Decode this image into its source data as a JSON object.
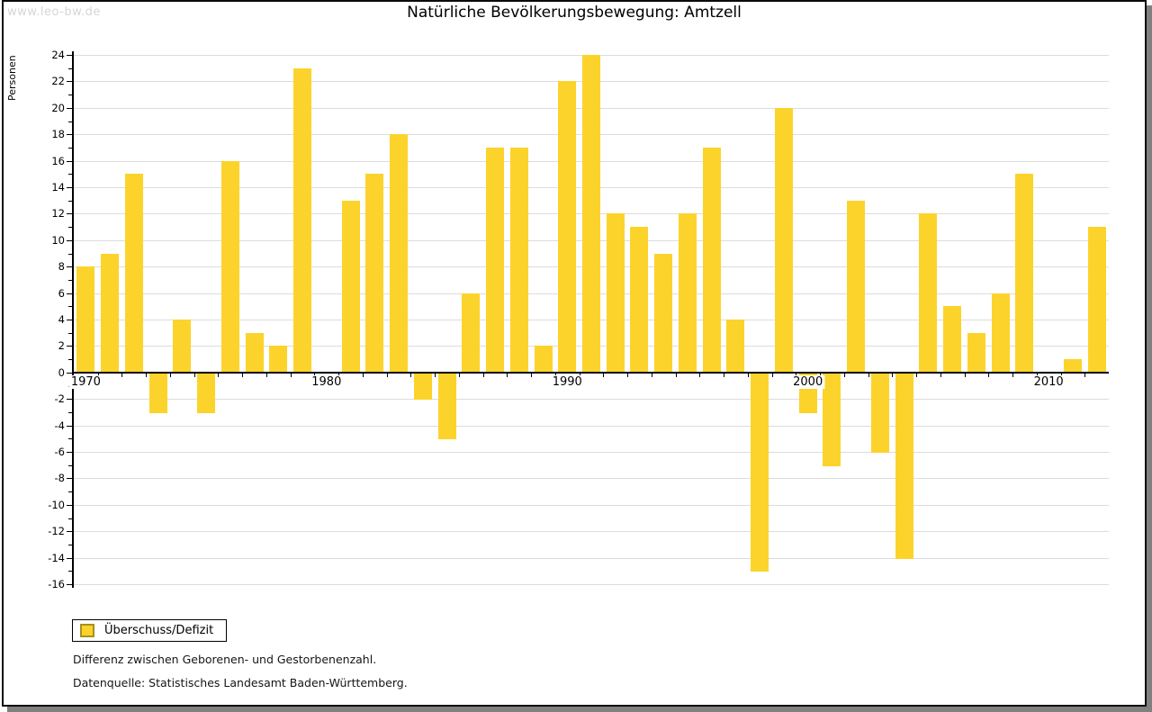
{
  "header": {
    "title": "Natürliche Bevölkerungsbewegung: Amtzell",
    "watermark": "www.leo-bw.de"
  },
  "chart_data": {
    "type": "bar",
    "title": "Natürliche Bevölkerungsbewegung: Amtzell",
    "ylabel": "Personen",
    "xlabel": "",
    "x": [
      1970,
      1971,
      1972,
      1973,
      1974,
      1975,
      1976,
      1977,
      1978,
      1979,
      1980,
      1981,
      1982,
      1983,
      1984,
      1985,
      1986,
      1987,
      1988,
      1989,
      1990,
      1991,
      1992,
      1993,
      1994,
      1995,
      1996,
      1997,
      1998,
      1999,
      2000,
      2001,
      2002,
      2003,
      2004,
      2005,
      2006,
      2007,
      2008,
      2009,
      2010,
      2011,
      2012
    ],
    "values": [
      8,
      9,
      15,
      -3,
      4,
      -3,
      16,
      3,
      2,
      23,
      0,
      13,
      15,
      18,
      -2,
      -5,
      6,
      17,
      17,
      2,
      22,
      24,
      12,
      11,
      9,
      12,
      17,
      4,
      -15,
      20,
      -3,
      -7,
      13,
      -6,
      -14,
      12,
      5,
      3,
      6,
      15,
      0,
      1,
      11
    ],
    "series_name": "Überschuss/Defizit",
    "ylim": [
      -16,
      24
    ],
    "yticks": [
      24,
      22,
      20,
      18,
      16,
      14,
      12,
      10,
      8,
      6,
      4,
      2,
      0,
      -2,
      -4,
      -6,
      -8,
      -10,
      -12,
      -14,
      -16
    ],
    "xticks": [
      1970,
      1980,
      1990,
      2000,
      2010
    ],
    "grid": true,
    "legend_position": "bottom-left"
  },
  "legend": {
    "label": "Überschuss/Defizit"
  },
  "footnotes": {
    "line1": "Differenz zwischen Geborenen- und Gestorbenenzahl.",
    "line2": "Datenquelle: Statistisches Landesamt Baden-Württemberg."
  },
  "colors": {
    "bar": "#FCD32B",
    "bar_border": "#A6921C",
    "grid": "#DCDCDC",
    "axis": "#000000",
    "watermark": "#D6D6D6",
    "shadow": "#808080"
  }
}
